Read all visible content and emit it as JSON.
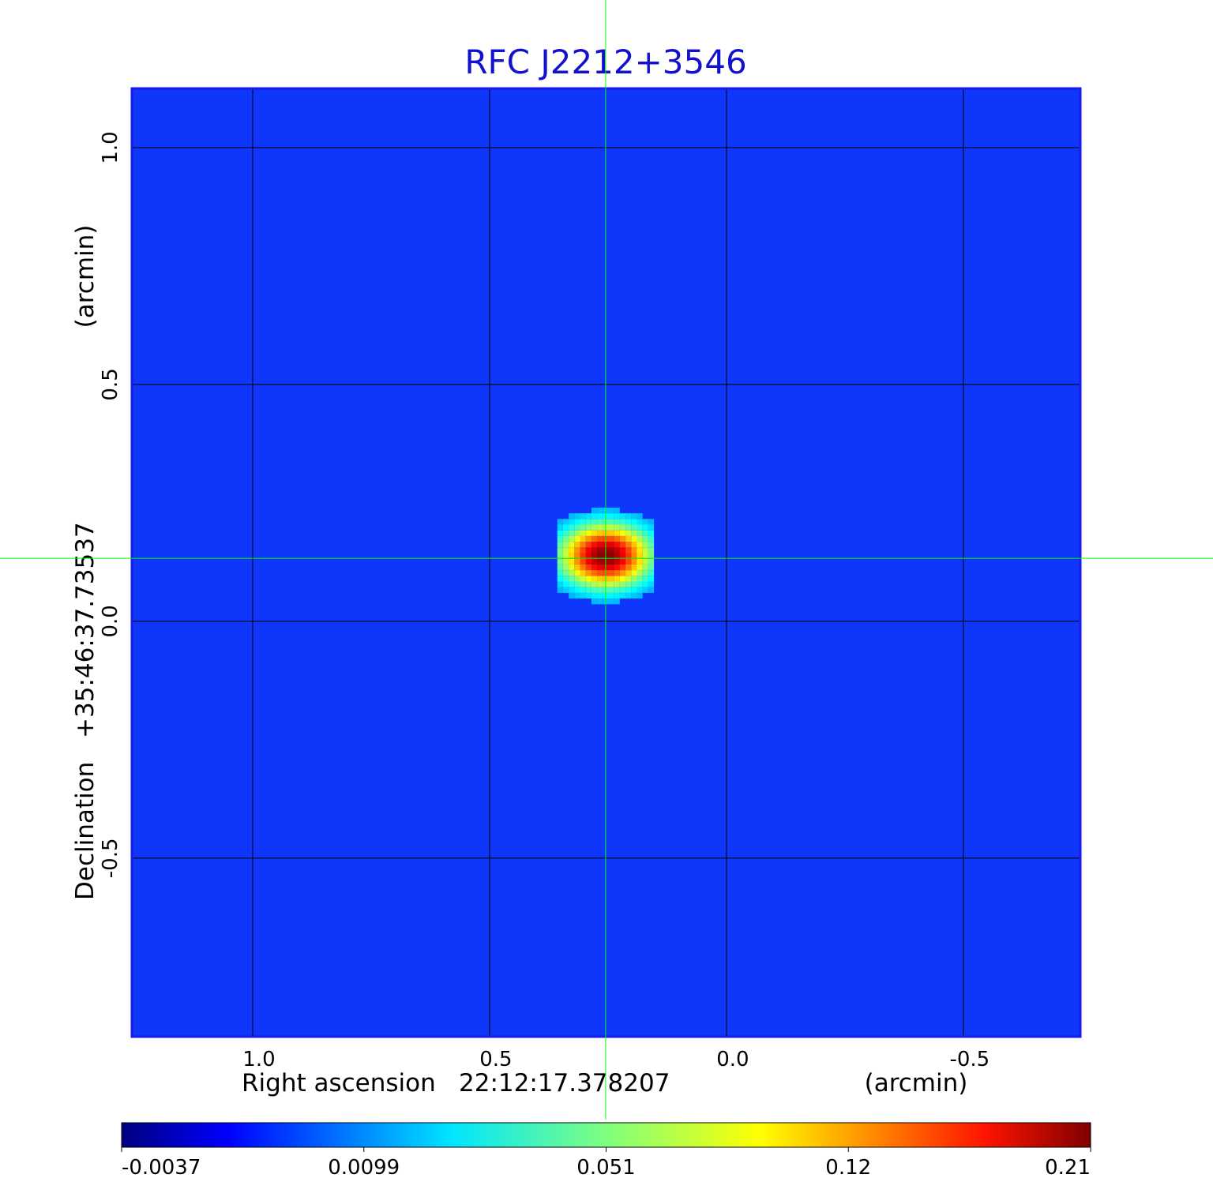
{
  "chart_data": {
    "type": "heatmap",
    "title": "RFC J2212+3546",
    "xlabel": {
      "prefix": "Right ascension",
      "value": "22:12:17.378207",
      "unit": "(arcmin)"
    },
    "ylabel": {
      "prefix": "Declination",
      "value": "+35:46:37.73537",
      "unit": "(arcmin)"
    },
    "x_ticks": [
      {
        "value": 1.0,
        "label": "1.0"
      },
      {
        "value": 0.5,
        "label": "0.5"
      },
      {
        "value": 0.0,
        "label": "0.0"
      },
      {
        "value": -0.5,
        "label": "-0.5"
      }
    ],
    "y_ticks": [
      {
        "value": 1.0,
        "label": "1.0"
      },
      {
        "value": 0.5,
        "label": "0.5"
      },
      {
        "value": 0.0,
        "label": "0.0"
      },
      {
        "value": -0.5,
        "label": "-0.5"
      }
    ],
    "xlim": [
      1.255,
      -0.747
    ],
    "ylim": [
      -0.877,
      1.125
    ],
    "x_reversed": true,
    "grid": true,
    "crosshair": {
      "x": 0.255,
      "y": 0.133,
      "color": "#00ff00"
    },
    "source": {
      "x": 0.255,
      "y": 0.138,
      "peak": 0.21,
      "sigma_x": 0.05,
      "sigma_y": 0.035
    },
    "background_level": 0.0,
    "colorbar": {
      "min": -0.0037,
      "max": 0.21,
      "labels": [
        "-0.0037",
        "0.0099",
        "0.051",
        "0.12",
        "0.21"
      ],
      "colormap": "jet"
    },
    "colors": {
      "title": "#1212cc",
      "frame": "#1a1aee",
      "grid": "#000000",
      "crosshair": "#00ff00"
    }
  }
}
